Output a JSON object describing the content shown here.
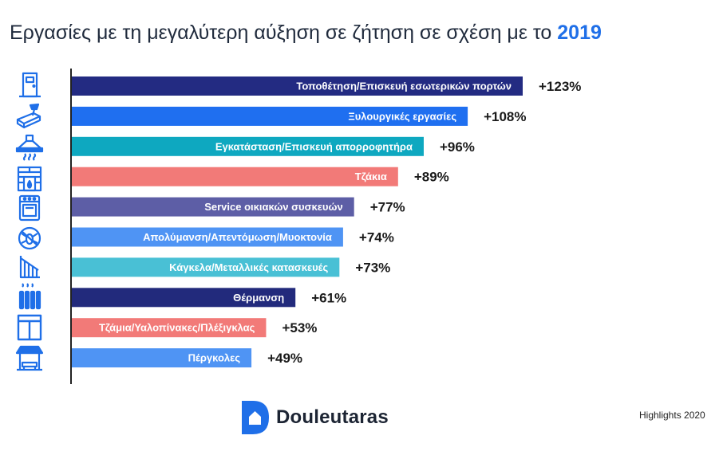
{
  "title": {
    "text": "Εργασίες με τη μεγαλύτερη αύξηση σε ζήτηση σε σχέση με το ",
    "year": "2019"
  },
  "chart_data": {
    "type": "bar",
    "orientation": "horizontal",
    "categories": [
      "Τοποθέτηση/Επισκευή εσωτερικών πορτών",
      "Ξυλουργικές εργασίες",
      "Εγκατάσταση/Επισκευή απορροφητήρα",
      "Τζάκια",
      "Service οικιακών συσκευών",
      "Απολύμανση/Απεντόμωση/Μυοκτονία",
      "Κάγκελα/Μεταλλικές κατασκευές",
      "Θέρμανση",
      "Τζάμια/Υαλοπίνακες/Πλέξιγκλας",
      "Πέργκολες"
    ],
    "values": [
      123,
      108,
      96,
      89,
      77,
      74,
      73,
      61,
      53,
      49
    ],
    "value_labels": [
      "+123%",
      "+108%",
      "+96%",
      "+89%",
      "+77%",
      "+74%",
      "+73%",
      "+61%",
      "+53%",
      "+49%"
    ],
    "colors": [
      "#232b82",
      "#1f6ff0",
      "#0ea8c0",
      "#f27a78",
      "#5d5ea6",
      "#4f94f4",
      "#49c0d5",
      "#222a7c",
      "#f27a78",
      "#4f94f4"
    ],
    "icon_names": [
      "door-icon",
      "carpentry-icon",
      "range-hood-icon",
      "fireplace-icon",
      "oven-icon",
      "pest-control-icon",
      "railing-icon",
      "radiator-icon",
      "window-icon",
      "pergola-icon"
    ],
    "xlim": [
      0,
      123
    ],
    "grid": false,
    "legend": "none"
  },
  "footer": {
    "logo_text": "Douleutaras",
    "note": "Highlights 2020"
  },
  "colors": {
    "icon": "#1f6fe8",
    "brand": "#1f6fe8",
    "text": "#1f2a3c"
  }
}
